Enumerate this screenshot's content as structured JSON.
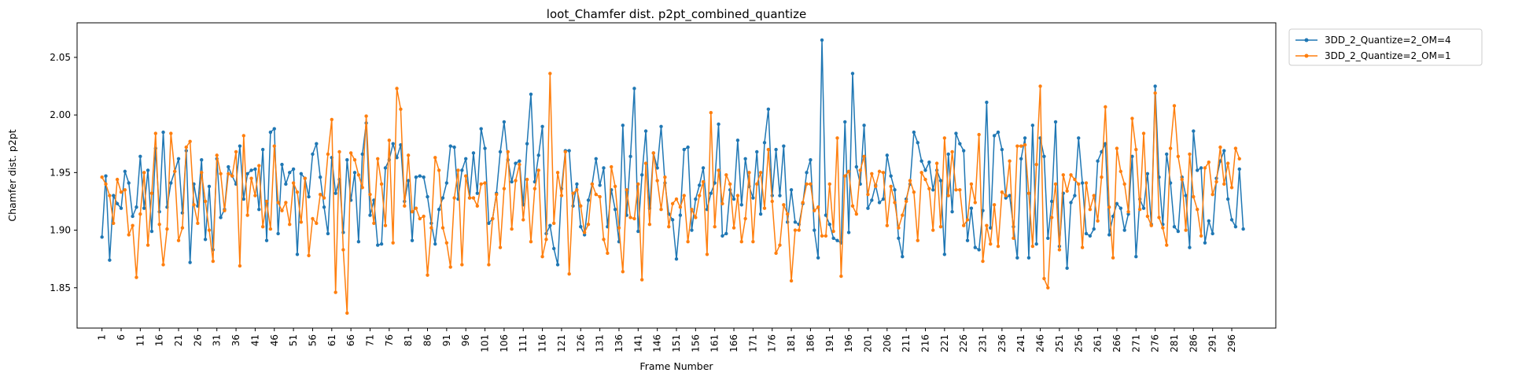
{
  "chart_data": {
    "type": "line",
    "title": "loot_Chamfer dist. p2pt_combined_quantize",
    "xlabel": "Frame Number",
    "ylabel": "Chamfer dist. p2pt",
    "ylim": [
      1.815,
      2.08
    ],
    "xlim": [
      -5.5,
      307.5
    ],
    "grid": false,
    "legend_placement": "outside-top-right",
    "x_start": 1,
    "x_end": 300,
    "x_ticks": [
      1,
      6,
      11,
      16,
      21,
      26,
      31,
      36,
      41,
      46,
      51,
      56,
      61,
      66,
      71,
      76,
      81,
      86,
      91,
      96,
      101,
      106,
      111,
      116,
      121,
      126,
      131,
      136,
      141,
      146,
      151,
      156,
      161,
      166,
      171,
      176,
      181,
      186,
      191,
      196,
      201,
      206,
      211,
      216,
      221,
      226,
      231,
      236,
      241,
      246,
      251,
      256,
      261,
      266,
      271,
      276,
      281,
      286,
      291,
      296
    ],
    "x_tick_labels": [
      "1",
      "6",
      "11",
      "16",
      "21",
      "26",
      "31",
      "36",
      "41",
      "46",
      "51",
      "56",
      "61",
      "66",
      "71",
      "76",
      "81",
      "86",
      "91",
      "96",
      "101",
      "106",
      "111",
      "116",
      "121",
      "126",
      "131",
      "136",
      "141",
      "146",
      "151",
      "156",
      "161",
      "166",
      "171",
      "176",
      "181",
      "186",
      "191",
      "196",
      "201",
      "206",
      "211",
      "216",
      "221",
      "226",
      "231",
      "236",
      "241",
      "246",
      "251",
      "256",
      "261",
      "266",
      "271",
      "276",
      "281",
      "286",
      "291",
      "296"
    ],
    "y_ticks": [
      1.85,
      1.9,
      1.95,
      2.0,
      2.05
    ],
    "y_tick_labels": [
      "1.85",
      "1.90",
      "1.95",
      "2.00",
      "2.05"
    ],
    "series": [
      {
        "name": "3DD_2_Quantize=2_OM=4",
        "color": "#1f77b4",
        "values": [
          1.894,
          1.947,
          1.874,
          1.93,
          1.923,
          1.919,
          1.951,
          1.941,
          1.912,
          1.92,
          1.964,
          1.919,
          1.952,
          1.899,
          1.971,
          1.916,
          1.985,
          1.92,
          1.941,
          1.951,
          1.962,
          1.915,
          1.969,
          1.872,
          1.94,
          1.921,
          1.961,
          1.892,
          1.938,
          1.883,
          1.962,
          1.911,
          1.918,
          1.955,
          1.947,
          1.94,
          1.973,
          1.927,
          1.949,
          1.952,
          1.953,
          1.918,
          1.97,
          1.891,
          1.985,
          1.988,
          1.897,
          1.957,
          1.94,
          1.95,
          1.953,
          1.879,
          1.949,
          1.945,
          1.929,
          1.966,
          1.975,
          1.946,
          1.92,
          1.897,
          1.963,
          1.932,
          1.944,
          1.898,
          1.961,
          1.926,
          1.95,
          1.89,
          1.966,
          1.993,
          1.913,
          1.926,
          1.887,
          1.888,
          1.954,
          1.961,
          1.975,
          1.963,
          1.974,
          1.925,
          1.943,
          1.891,
          1.946,
          1.947,
          1.946,
          1.929,
          1.906,
          1.888,
          1.918,
          1.928,
          1.941,
          1.973,
          1.972,
          1.927,
          1.952,
          1.962,
          1.928,
          1.967,
          1.932,
          1.988,
          1.971,
          1.906,
          1.91,
          1.932,
          1.968,
          1.994,
          1.961,
          1.942,
          1.958,
          1.96,
          1.922,
          1.975,
          2.018,
          1.942,
          1.965,
          1.99,
          1.897,
          1.904,
          1.884,
          1.87,
          1.936,
          1.969,
          1.969,
          1.921,
          1.94,
          1.903,
          1.896,
          1.926,
          1.94,
          1.962,
          1.939,
          1.954,
          1.903,
          1.935,
          1.918,
          1.89,
          1.991,
          1.913,
          1.964,
          2.023,
          1.899,
          1.948,
          1.986,
          1.919,
          1.967,
          1.954,
          1.99,
          1.941,
          1.914,
          1.909,
          1.875,
          1.913,
          1.97,
          1.972,
          1.9,
          1.927,
          1.939,
          1.954,
          1.918,
          1.932,
          1.941,
          1.992,
          1.895,
          1.897,
          1.935,
          1.927,
          1.978,
          1.922,
          1.962,
          1.938,
          1.928,
          1.968,
          1.914,
          1.976,
          2.005,
          1.93,
          1.97,
          1.93,
          1.973,
          1.907,
          1.935,
          1.907,
          1.905,
          1.923,
          1.95,
          1.961,
          1.9,
          1.876,
          2.065,
          1.913,
          1.905,
          1.893,
          1.891,
          1.889,
          1.994,
          1.898,
          2.036,
          1.955,
          1.94,
          1.991,
          1.919,
          1.926,
          1.939,
          1.924,
          1.927,
          1.965,
          1.947,
          1.935,
          1.893,
          1.877,
          1.927,
          1.94,
          1.985,
          1.976,
          1.96,
          1.952,
          1.959,
          1.935,
          1.952,
          1.943,
          1.879,
          1.966,
          1.916,
          1.984,
          1.975,
          1.969,
          1.891,
          1.919,
          1.885,
          1.883,
          1.917,
          2.011,
          1.902,
          1.982,
          1.985,
          1.97,
          1.928,
          1.93,
          1.903,
          1.876,
          1.962,
          1.98,
          1.876,
          1.991,
          1.888,
          1.98,
          1.964,
          1.893,
          1.925,
          1.994,
          1.886,
          1.932,
          1.867,
          1.924,
          1.93,
          1.98,
          1.941,
          1.897,
          1.895,
          1.901,
          1.96,
          1.968,
          1.975,
          1.896,
          1.912,
          1.923,
          1.919,
          1.9,
          1.914,
          1.964,
          1.877,
          1.927,
          1.919,
          1.949,
          1.905,
          2.025,
          1.946,
          1.905,
          1.966,
          1.941,
          1.903,
          1.899,
          1.946,
          1.93,
          1.885,
          1.986,
          1.952,
          1.954,
          1.889,
          1.908,
          1.897,
          1.945,
          1.96,
          1.969,
          1.927,
          1.909,
          1.903,
          1.953,
          1.901
        ]
      },
      {
        "name": "3DD_2_Quantize=2_OM=1",
        "color": "#ff7f0e",
        "values": [
          1.946,
          1.94,
          1.93,
          1.906,
          1.944,
          1.933,
          1.935,
          1.896,
          1.904,
          1.859,
          1.914,
          1.95,
          1.887,
          1.932,
          1.984,
          1.905,
          1.87,
          1.901,
          1.984,
          1.951,
          1.891,
          1.902,
          1.972,
          1.977,
          1.922,
          1.906,
          1.95,
          1.925,
          1.9,
          1.873,
          1.965,
          1.949,
          1.917,
          1.949,
          1.947,
          1.968,
          1.869,
          1.982,
          1.913,
          1.945,
          1.93,
          1.956,
          1.903,
          1.925,
          1.901,
          1.973,
          1.924,
          1.917,
          1.924,
          1.905,
          1.941,
          1.933,
          1.907,
          1.945,
          1.878,
          1.91,
          1.906,
          1.931,
          1.928,
          1.966,
          1.996,
          1.846,
          1.968,
          1.883,
          1.828,
          1.967,
          1.961,
          1.948,
          1.937,
          1.999,
          1.931,
          1.906,
          1.962,
          1.94,
          1.904,
          1.978,
          1.889,
          2.023,
          2.005,
          1.921,
          1.965,
          1.916,
          1.919,
          1.91,
          1.912,
          1.861,
          1.902,
          1.963,
          1.952,
          1.902,
          1.889,
          1.868,
          1.928,
          1.952,
          1.87,
          1.947,
          1.928,
          1.928,
          1.921,
          1.94,
          1.941,
          1.87,
          1.91,
          1.931,
          1.885,
          1.936,
          1.968,
          1.901,
          1.943,
          1.957,
          1.909,
          1.944,
          1.89,
          1.936,
          1.952,
          1.877,
          1.892,
          2.036,
          1.906,
          1.95,
          1.93,
          1.968,
          1.862,
          1.932,
          1.935,
          1.921,
          1.898,
          1.905,
          1.94,
          1.931,
          1.929,
          1.892,
          1.88,
          1.955,
          1.938,
          1.902,
          1.864,
          1.935,
          1.911,
          1.91,
          1.94,
          1.857,
          1.958,
          1.905,
          1.967,
          1.943,
          1.918,
          1.946,
          1.903,
          1.923,
          1.927,
          1.92,
          1.93,
          1.89,
          1.918,
          1.911,
          1.93,
          1.942,
          1.879,
          2.002,
          1.903,
          1.952,
          1.923,
          1.948,
          1.94,
          1.902,
          1.93,
          1.89,
          1.91,
          1.95,
          1.89,
          1.94,
          1.95,
          1.919,
          1.97,
          1.925,
          1.88,
          1.887,
          1.922,
          1.914,
          1.856,
          1.9,
          1.9,
          1.924,
          1.94,
          1.94,
          1.917,
          1.92,
          1.895,
          1.895,
          1.94,
          1.899,
          1.98,
          1.86,
          1.947,
          1.951,
          1.921,
          1.914,
          1.952,
          1.964,
          1.931,
          1.949,
          1.938,
          1.951,
          1.95,
          1.904,
          1.938,
          1.924,
          1.902,
          1.913,
          1.925,
          1.943,
          1.933,
          1.891,
          1.95,
          1.944,
          1.936,
          1.9,
          1.958,
          1.903,
          1.98,
          1.93,
          1.968,
          1.935,
          1.935,
          1.904,
          1.909,
          1.94,
          1.924,
          1.983,
          1.873,
          1.904,
          1.888,
          1.922,
          1.886,
          1.933,
          1.93,
          1.96,
          1.893,
          1.973,
          1.973,
          1.974,
          1.932,
          1.886,
          1.957,
          2.025,
          1.858,
          1.85,
          1.911,
          1.94,
          1.883,
          1.948,
          1.934,
          1.948,
          1.944,
          1.94,
          1.885,
          1.941,
          1.918,
          1.93,
          1.908,
          1.946,
          2.007,
          1.92,
          1.876,
          1.971,
          1.951,
          1.94,
          1.916,
          1.997,
          1.97,
          1.918,
          1.984,
          1.912,
          1.904,
          2.019,
          1.911,
          1.902,
          1.887,
          1.971,
          2.008,
          1.964,
          1.944,
          1.9,
          1.966,
          1.929,
          1.918,
          1.895,
          1.954,
          1.959,
          1.931,
          1.942,
          1.972,
          1.94,
          1.958,
          1.937,
          1.971,
          1.962
        ]
      }
    ]
  }
}
